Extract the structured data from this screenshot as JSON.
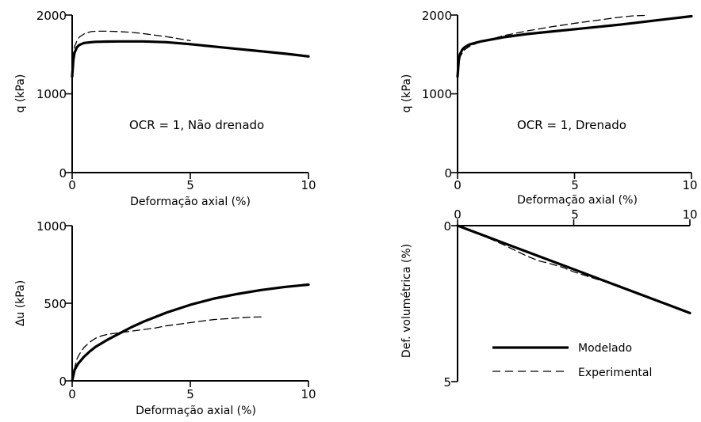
{
  "figure": {
    "legend": {
      "modeled_label": "Modelado",
      "experimental_label": "Experimental"
    }
  },
  "colors": {
    "ink": "#000000",
    "background": "#ffffff"
  },
  "chart_data": [
    {
      "type": "line",
      "id": "q-undrained",
      "note": "OCR = 1, Não drenado",
      "xlabel": "Deformação axial (%)",
      "ylabel": "q (kPa)",
      "xlim": [
        0,
        10
      ],
      "ylim": [
        0,
        2000
      ],
      "xticks": [
        0,
        5,
        10
      ],
      "yticks": [
        0,
        1000,
        2000
      ],
      "grid": false,
      "series": [
        {
          "name": "Modelado",
          "style": "solid",
          "x": [
            0,
            0.05,
            0.1,
            0.2,
            0.3,
            0.5,
            0.8,
            1,
            1.5,
            2,
            2.5,
            3,
            3.5,
            4,
            5,
            6,
            7,
            8,
            9,
            10
          ],
          "y": [
            1220,
            1430,
            1520,
            1590,
            1620,
            1645,
            1655,
            1660,
            1663,
            1665,
            1665,
            1665,
            1660,
            1655,
            1630,
            1600,
            1570,
            1540,
            1510,
            1475
          ]
        },
        {
          "name": "Experimental",
          "style": "dashed",
          "x": [
            0,
            0.05,
            0.1,
            0.2,
            0.3,
            0.5,
            0.8,
            1,
            1.5,
            2,
            2.5,
            3,
            3.5,
            4,
            4.5,
            5
          ],
          "y": [
            1300,
            1500,
            1600,
            1670,
            1720,
            1760,
            1790,
            1795,
            1795,
            1790,
            1780,
            1765,
            1745,
            1725,
            1700,
            1675
          ]
        }
      ]
    },
    {
      "type": "line",
      "id": "q-drained",
      "note": "OCR = 1, Drenado",
      "xlabel": "Deformação axial (%)",
      "ylabel": "q (kPa)",
      "xlim": [
        0,
        10
      ],
      "ylim": [
        0,
        2000
      ],
      "xticks": [
        0,
        5,
        10
      ],
      "yticks": [
        0,
        1000,
        2000
      ],
      "grid": false,
      "series": [
        {
          "name": "Modelado",
          "style": "solid",
          "x": [
            0,
            0.05,
            0.1,
            0.2,
            0.3,
            0.5,
            0.8,
            1,
            2,
            3,
            4,
            5,
            6,
            7,
            8,
            9,
            10
          ],
          "y": [
            1220,
            1420,
            1500,
            1560,
            1590,
            1625,
            1650,
            1665,
            1720,
            1760,
            1790,
            1820,
            1850,
            1880,
            1915,
            1950,
            1985
          ]
        },
        {
          "name": "Experimental",
          "style": "dashed",
          "x": [
            0,
            0.05,
            0.1,
            0.3,
            0.5,
            0.8,
            1,
            1.5,
            2,
            3,
            4,
            5,
            6,
            7,
            7.5,
            8
          ],
          "y": [
            1150,
            1380,
            1470,
            1560,
            1600,
            1640,
            1665,
            1700,
            1740,
            1800,
            1850,
            1895,
            1935,
            1975,
            1990,
            1995
          ]
        }
      ]
    },
    {
      "type": "line",
      "id": "pore-pressure",
      "xlabel": "Deformação axial (%)",
      "ylabel": "Δu (kPa)",
      "xlim": [
        0,
        10
      ],
      "ylim": [
        0,
        1000
      ],
      "xticks": [
        0,
        5,
        10
      ],
      "yticks": [
        0,
        500,
        1000
      ],
      "grid": false,
      "series": [
        {
          "name": "Modelado",
          "style": "solid",
          "x": [
            0,
            0.1,
            0.25,
            0.5,
            0.75,
            1,
            1.5,
            2,
            2.5,
            3,
            3.5,
            4,
            5,
            6,
            7,
            8,
            9,
            10
          ],
          "y": [
            0,
            70,
            110,
            155,
            190,
            220,
            265,
            305,
            345,
            380,
            410,
            440,
            490,
            530,
            560,
            585,
            605,
            620
          ]
        },
        {
          "name": "Experimental",
          "style": "dashed",
          "x": [
            0,
            0.1,
            0.2,
            0.3,
            0.5,
            0.75,
            1,
            1.25,
            1.5,
            1.75,
            2,
            2.5,
            3,
            3.5,
            4,
            4.5,
            5,
            5.5,
            6,
            6.5,
            7,
            7.5,
            8
          ],
          "y": [
            0,
            80,
            140,
            170,
            215,
            250,
            275,
            290,
            300,
            305,
            310,
            320,
            330,
            340,
            355,
            365,
            375,
            385,
            395,
            400,
            405,
            410,
            412
          ]
        }
      ]
    },
    {
      "type": "line",
      "id": "volumetric-strain",
      "xlabel": "",
      "ylabel": "Def. volumétrica (%)",
      "xlim": [
        0,
        10
      ],
      "ylim": [
        0,
        5
      ],
      "y_inverted": true,
      "x_axis_position": "top",
      "xticks": [
        0,
        5,
        10
      ],
      "yticks": [
        0,
        5
      ],
      "grid": false,
      "legend": "lower-right",
      "series": [
        {
          "name": "Modelado",
          "style": "solid",
          "x": [
            0,
            1,
            2,
            3,
            4,
            5,
            6,
            7,
            8,
            9,
            10
          ],
          "y": [
            0,
            0.28,
            0.56,
            0.84,
            1.12,
            1.4,
            1.68,
            1.96,
            2.24,
            2.52,
            2.8
          ]
        },
        {
          "name": "Experimental",
          "style": "dashed",
          "x": [
            0,
            0.5,
            1,
            1.5,
            2,
            2.5,
            3,
            3.5,
            4,
            4.5,
            5,
            5.5,
            6,
            6.5,
            7
          ],
          "y": [
            0,
            0.14,
            0.3,
            0.45,
            0.62,
            0.8,
            0.98,
            1.13,
            1.22,
            1.33,
            1.48,
            1.6,
            1.72,
            1.83,
            1.93
          ]
        }
      ]
    }
  ]
}
